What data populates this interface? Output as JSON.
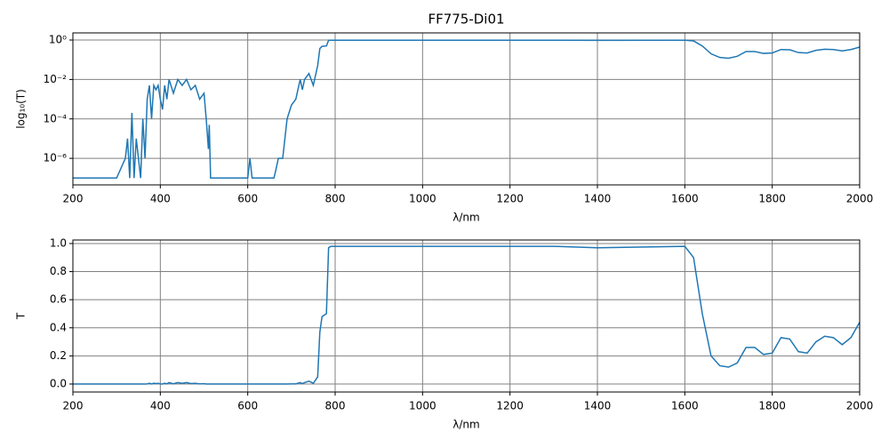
{
  "chart_data": [
    {
      "type": "line",
      "title": "FF775-Di01",
      "x_label": "λ/nm",
      "y_label": "log₁₀(T)",
      "yscale": "log",
      "grid": true,
      "xlim": [
        200,
        2000
      ],
      "xticks": [
        200,
        400,
        600,
        800,
        1000,
        1200,
        1400,
        1600,
        1800,
        2000
      ],
      "ylim": [
        4.5e-08,
        2.3
      ],
      "yticks": [
        {
          "value": 1e-06,
          "label": "10⁻⁶"
        },
        {
          "value": 0.0001,
          "label": "10⁻⁴"
        },
        {
          "value": 0.01,
          "label": "10⁻²"
        },
        {
          "value": 1,
          "label": "10⁰"
        }
      ],
      "x": [
        200,
        290,
        300,
        320,
        325,
        330,
        335,
        340,
        345,
        350,
        355,
        360,
        365,
        370,
        375,
        380,
        385,
        390,
        395,
        400,
        405,
        410,
        415,
        420,
        430,
        440,
        450,
        460,
        470,
        480,
        490,
        500,
        505,
        510,
        512,
        515,
        600,
        605,
        610,
        660,
        665,
        670,
        680,
        690,
        700,
        710,
        720,
        725,
        730,
        740,
        750,
        760,
        765,
        770,
        780,
        785,
        790,
        1000,
        1300,
        1400,
        1600,
        1620,
        1640,
        1660,
        1680,
        1700,
        1720,
        1740,
        1760,
        1780,
        1800,
        1820,
        1840,
        1860,
        1880,
        1900,
        1920,
        1940,
        1960,
        1980,
        2000
      ],
      "series": [
        {
          "color": "#1f77b4",
          "values": [
            1e-07,
            1e-07,
            1e-07,
            1e-06,
            1e-05,
            1e-07,
            0.0002,
            1e-07,
            1e-05,
            1e-06,
            1e-07,
            0.0001,
            1e-06,
            0.001,
            0.005,
            0.0001,
            0.005,
            0.003,
            0.005,
            0.001,
            0.0003,
            0.005,
            0.001,
            0.01,
            0.002,
            0.01,
            0.005,
            0.01,
            0.003,
            0.005,
            0.001,
            0.002,
            0.0001,
            3e-06,
            5e-05,
            1e-07,
            1e-07,
            1e-06,
            1e-07,
            1e-07,
            3e-07,
            1e-06,
            1e-06,
            0.0001,
            0.0005,
            0.001,
            0.01,
            0.003,
            0.01,
            0.02,
            0.005,
            0.05,
            0.37,
            0.48,
            0.5,
            0.97,
            0.98,
            0.98,
            0.98,
            0.97,
            0.98,
            0.9,
            0.5,
            0.2,
            0.13,
            0.12,
            0.15,
            0.26,
            0.26,
            0.21,
            0.22,
            0.33,
            0.32,
            0.23,
            0.22,
            0.3,
            0.34,
            0.33,
            0.28,
            0.33,
            0.44
          ]
        }
      ]
    },
    {
      "type": "line",
      "x_label": "λ/nm",
      "y_label": "T",
      "grid": true,
      "xlim": [
        200,
        2000
      ],
      "xticks": [
        200,
        400,
        600,
        800,
        1000,
        1200,
        1400,
        1600,
        1800,
        2000
      ],
      "ylim": [
        -0.057,
        1.025
      ],
      "yticks": [
        {
          "value": 0,
          "label": "0.0"
        },
        0.2,
        0.4,
        0.6,
        0.8,
        {
          "value": 1,
          "label": "1.0"
        }
      ],
      "x": [
        200,
        290,
        300,
        320,
        325,
        330,
        335,
        340,
        345,
        350,
        355,
        360,
        365,
        370,
        375,
        380,
        385,
        390,
        395,
        400,
        405,
        410,
        415,
        420,
        430,
        440,
        450,
        460,
        470,
        480,
        490,
        500,
        505,
        510,
        512,
        515,
        600,
        605,
        610,
        660,
        665,
        670,
        680,
        690,
        700,
        710,
        720,
        725,
        730,
        740,
        750,
        760,
        765,
        770,
        780,
        785,
        790,
        1000,
        1300,
        1400,
        1600,
        1620,
        1640,
        1660,
        1680,
        1700,
        1720,
        1740,
        1760,
        1780,
        1800,
        1820,
        1840,
        1860,
        1880,
        1900,
        1920,
        1940,
        1960,
        1980,
        2000
      ],
      "series": [
        {
          "color": "#1f77b4",
          "values": [
            1e-07,
            1e-07,
            1e-07,
            1e-06,
            1e-05,
            1e-07,
            0.0002,
            1e-07,
            1e-05,
            1e-06,
            1e-07,
            0.0001,
            1e-06,
            0.001,
            0.005,
            0.0001,
            0.005,
            0.003,
            0.005,
            0.001,
            0.0003,
            0.005,
            0.001,
            0.01,
            0.002,
            0.01,
            0.005,
            0.01,
            0.003,
            0.005,
            0.001,
            0.002,
            0.0001,
            3e-06,
            5e-05,
            1e-07,
            1e-07,
            1e-06,
            1e-07,
            1e-07,
            3e-07,
            1e-06,
            1e-06,
            0.0001,
            0.0005,
            0.001,
            0.01,
            0.003,
            0.01,
            0.02,
            0.005,
            0.05,
            0.37,
            0.48,
            0.5,
            0.97,
            0.98,
            0.98,
            0.98,
            0.97,
            0.98,
            0.9,
            0.5,
            0.2,
            0.13,
            0.12,
            0.15,
            0.26,
            0.26,
            0.21,
            0.22,
            0.33,
            0.32,
            0.23,
            0.22,
            0.3,
            0.34,
            0.33,
            0.28,
            0.33,
            0.44
          ]
        }
      ]
    }
  ]
}
